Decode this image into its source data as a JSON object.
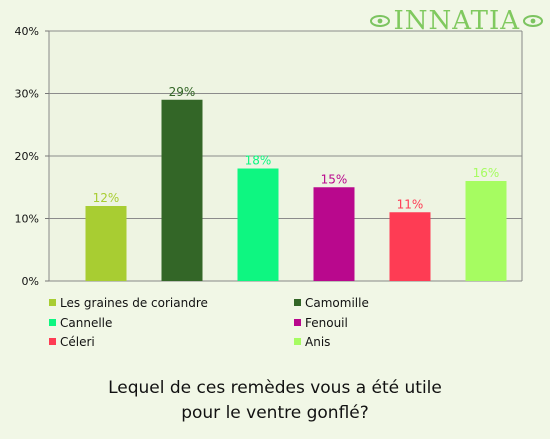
{
  "brand": {
    "name": "INNATIA",
    "color": "#7cc460",
    "icon_left": "leaf-eye-icon",
    "icon_right": "leaf-eye-icon"
  },
  "question": {
    "line1": "Lequel de ces remèdes vous a été utile",
    "line2": "pour le ventre gonflé?"
  },
  "chart_data": {
    "type": "bar",
    "categories": [
      "Les graines de coriandre",
      "Camomille",
      "Cannelle",
      "Fenouil",
      "Céleri",
      "Anis"
    ],
    "values": [
      12,
      29,
      18,
      15,
      11,
      16
    ],
    "colors": [
      "#a8cd32",
      "#336627",
      "#0ef681",
      "#b9088d",
      "#fe3c54",
      "#a6fc61"
    ],
    "data_labels": [
      "12%",
      "29%",
      "18%",
      "15%",
      "11%",
      "16%"
    ],
    "y_ticks": [
      {
        "value": 0,
        "label": "0%"
      },
      {
        "value": 10,
        "label": "10%"
      },
      {
        "value": 20,
        "label": "20%"
      },
      {
        "value": 30,
        "label": "30%"
      },
      {
        "value": 40,
        "label": "40%"
      }
    ],
    "ylim": [
      0,
      40
    ],
    "grid": true,
    "legend_position": "bottom",
    "legend_columns": 2
  }
}
